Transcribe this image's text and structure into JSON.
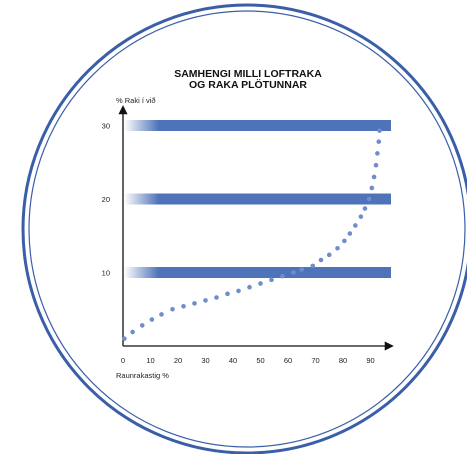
{
  "chart_data": {
    "type": "scatter",
    "title_lines": [
      "SAMHENGI MILLI LOFTRAKA",
      "OG RAKA PLÖTUNNAR"
    ],
    "ylabel": "% Raki í við",
    "xlabel": "Raunrakastig %",
    "xlim": [
      0,
      95
    ],
    "ylim": [
      0,
      33
    ],
    "x_ticks": [
      0,
      10,
      20,
      30,
      40,
      50,
      60,
      70,
      80,
      90
    ],
    "y_ticks": [
      10,
      20,
      30
    ],
    "reference_bands": [
      10,
      20,
      30
    ],
    "grid": false,
    "legend": "none",
    "series": [
      {
        "x": [
          0.5,
          3.5,
          7,
          10.5,
          14,
          18,
          22,
          26,
          30,
          34,
          38,
          42,
          46,
          50,
          54,
          58,
          62,
          65,
          69,
          72,
          75,
          78,
          80.5,
          82.5,
          84.5,
          86.5,
          88,
          89.5,
          90.5,
          91.3,
          92,
          92.5,
          93,
          93.3
        ],
        "y": [
          1,
          1.9,
          2.8,
          3.6,
          4.3,
          5.0,
          5.4,
          5.8,
          6.2,
          6.6,
          7.1,
          7.5,
          8.0,
          8.5,
          9.0,
          9.5,
          10.0,
          10.4,
          10.9,
          11.7,
          12.4,
          13.3,
          14.3,
          15.3,
          16.4,
          17.6,
          18.7,
          20.0,
          21.5,
          23.0,
          24.6,
          26.2,
          27.8,
          29.3
        ]
      }
    ],
    "colors": {
      "band": "#4f73b8",
      "points": "#6f8ccc",
      "circle": "#3a5fa8",
      "axes": "#111111"
    }
  }
}
